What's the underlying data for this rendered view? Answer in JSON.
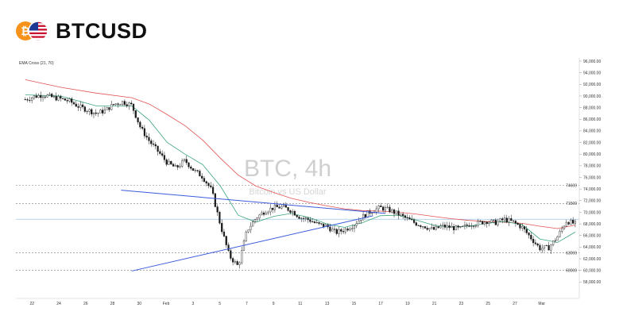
{
  "header": {
    "ticker": "BTCUSD",
    "btc_glyph": "₿",
    "btc_color": "#f7931a",
    "flag": "us-flag-icon"
  },
  "indicator_label": "EMA Cross (21, 70)",
  "watermark": {
    "title": "BTC, 4h",
    "subtitle": "Bitcoin vs US Dollar"
  },
  "colors": {
    "ema_fast": "#3aa57a",
    "ema_slow": "#e05252",
    "trend_line": "#3b5bdb",
    "candle": "#1a1a1a",
    "level_line": "#777777"
  },
  "chart_data": {
    "type": "candlestick",
    "title": "BTC, 4h",
    "subtitle": "Bitcoin vs US Dollar",
    "ylim": [
      56000,
      96000
    ],
    "y_ticks": [
      "96,000.00",
      "94,000.00",
      "92,000.00",
      "90,000.00",
      "88,000.00",
      "86,000.00",
      "84,000.00",
      "82,000.00",
      "80,000.00",
      "78,000.00",
      "76,000.00",
      "74,000.00",
      "72,000.00",
      "70,000.00",
      "68,000.00",
      "66,000.00",
      "64,000.00",
      "62,000.00",
      "60,000.00",
      "58,000.00"
    ],
    "y_tick_values": [
      96000,
      94000,
      92000,
      90000,
      88000,
      86000,
      84000,
      82000,
      80000,
      78000,
      76000,
      74000,
      72000,
      70000,
      68000,
      66000,
      64000,
      62000,
      60000,
      58000
    ],
    "x_range": [
      20.5,
      29.8
    ],
    "x_ticks": [
      {
        "t": 21.0,
        "label": "22"
      },
      {
        "t": 22.0,
        "label": "24"
      },
      {
        "t": 23.0,
        "label": "26"
      },
      {
        "t": 24.0,
        "label": "28"
      },
      {
        "t": 25.0,
        "label": "30"
      },
      {
        "t": 26.0,
        "label": "Feb"
      },
      {
        "t": 27.0,
        "label": "3"
      },
      {
        "t": 28.0,
        "label": "5"
      },
      {
        "t": 28.4,
        "label": "7"
      },
      {
        "t": 29.3,
        "label": "9"
      }
    ],
    "x_ticks_full": [
      "22",
      "24",
      "26",
      "28",
      "30",
      "Feb",
      "3",
      "5",
      "7",
      "9",
      "11",
      "13",
      "15",
      "17",
      "19",
      "21",
      "23",
      "25",
      "27",
      "Mar"
    ],
    "levels": [
      {
        "value": 74600,
        "label": "74600"
      },
      {
        "value": 71500,
        "label": "71500"
      },
      {
        "value": 63000,
        "label": "63000"
      },
      {
        "value": 60000,
        "label": "60000"
      }
    ],
    "support_line": {
      "value": 68800
    },
    "trend_lines": [
      {
        "from": [
          6.0,
          59900
        ],
        "to": [
          19.6,
          69400
        ]
      },
      {
        "from": [
          5.4,
          73800
        ],
        "to": [
          20.3,
          69800
        ]
      }
    ],
    "close_series": [
      [
        0.0,
        89400
      ],
      [
        0.5,
        89900
      ],
      [
        1.0,
        90200
      ],
      [
        1.5,
        89800
      ],
      [
        2.0,
        89500
      ],
      [
        2.5,
        89100
      ],
      [
        3.0,
        88200
      ],
      [
        3.5,
        87600
      ],
      [
        4.0,
        87000
      ],
      [
        4.5,
        87500
      ],
      [
        5.0,
        88600
      ],
      [
        5.5,
        89000
      ],
      [
        6.0,
        88400
      ],
      [
        6.5,
        84500
      ],
      [
        7.0,
        82200
      ],
      [
        7.5,
        80400
      ],
      [
        8.0,
        78500
      ],
      [
        8.5,
        77600
      ],
      [
        9.0,
        78900
      ],
      [
        9.5,
        77200
      ],
      [
        10.0,
        76100
      ],
      [
        10.5,
        73800
      ],
      [
        11.0,
        67800
      ],
      [
        11.5,
        62500
      ],
      [
        12.0,
        60700
      ],
      [
        12.5,
        66900
      ],
      [
        13.0,
        69000
      ],
      [
        13.5,
        70200
      ],
      [
        14.0,
        70800
      ],
      [
        14.5,
        70900
      ],
      [
        15.0,
        70300
      ],
      [
        15.5,
        69100
      ],
      [
        16.0,
        68700
      ],
      [
        16.5,
        67900
      ],
      [
        17.0,
        67600
      ],
      [
        17.5,
        66500
      ],
      [
        18.0,
        67000
      ],
      [
        18.5,
        67800
      ],
      [
        19.0,
        69200
      ],
      [
        19.5,
        70200
      ],
      [
        20.0,
        70800
      ],
      [
        20.5,
        70400
      ],
      [
        21.0,
        69700
      ],
      [
        21.5,
        68900
      ],
      [
        22.0,
        68100
      ],
      [
        22.5,
        67600
      ],
      [
        23.0,
        67000
      ],
      [
        23.5,
        67600
      ],
      [
        24.0,
        67400
      ],
      [
        24.5,
        67100
      ],
      [
        25.0,
        67900
      ],
      [
        25.5,
        68100
      ],
      [
        26.0,
        68500
      ],
      [
        26.5,
        68200
      ],
      [
        27.0,
        68800
      ],
      [
        27.5,
        68300
      ],
      [
        28.0,
        67400
      ],
      [
        28.5,
        65600
      ],
      [
        29.0,
        63800
      ],
      [
        29.5,
        63900
      ],
      [
        30.0,
        65800
      ],
      [
        30.5,
        68500
      ],
      [
        31.0,
        68000
      ]
    ],
    "ema_fast_series": [
      [
        0.0,
        90200
      ],
      [
        2.0,
        90000
      ],
      [
        4.0,
        88300
      ],
      [
        6.0,
        88300
      ],
      [
        7.0,
        85800
      ],
      [
        8.0,
        82000
      ],
      [
        9.0,
        80000
      ],
      [
        10.0,
        78200
      ],
      [
        11.0,
        74500
      ],
      [
        12.0,
        69500
      ],
      [
        13.0,
        68300
      ],
      [
        14.0,
        69300
      ],
      [
        15.0,
        69800
      ],
      [
        16.0,
        69100
      ],
      [
        17.0,
        68000
      ],
      [
        18.0,
        67400
      ],
      [
        19.0,
        68200
      ],
      [
        20.0,
        69400
      ],
      [
        21.0,
        69500
      ],
      [
        22.0,
        68700
      ],
      [
        23.0,
        67800
      ],
      [
        24.0,
        67500
      ],
      [
        25.0,
        67600
      ],
      [
        26.0,
        68100
      ],
      [
        27.0,
        68400
      ],
      [
        28.0,
        67900
      ],
      [
        29.0,
        65400
      ],
      [
        30.0,
        64800
      ],
      [
        31.0,
        66600
      ]
    ],
    "ema_slow_series": [
      [
        0.0,
        92800
      ],
      [
        2.0,
        91500
      ],
      [
        4.0,
        90500
      ],
      [
        6.0,
        89700
      ],
      [
        7.0,
        88600
      ],
      [
        8.0,
        86800
      ],
      [
        9.0,
        84900
      ],
      [
        10.0,
        82400
      ],
      [
        11.0,
        79300
      ],
      [
        12.0,
        76400
      ],
      [
        13.0,
        74500
      ],
      [
        14.0,
        73400
      ],
      [
        15.0,
        72400
      ],
      [
        16.0,
        71700
      ],
      [
        17.0,
        71100
      ],
      [
        18.0,
        70600
      ],
      [
        19.0,
        70300
      ],
      [
        20.0,
        70200
      ],
      [
        21.0,
        70000
      ],
      [
        22.0,
        69700
      ],
      [
        23.0,
        69300
      ],
      [
        24.0,
        68900
      ],
      [
        25.0,
        68600
      ],
      [
        26.0,
        68400
      ],
      [
        27.0,
        68300
      ],
      [
        28.0,
        68100
      ],
      [
        29.0,
        67600
      ],
      [
        30.0,
        67200
      ],
      [
        31.0,
        67800
      ]
    ]
  }
}
